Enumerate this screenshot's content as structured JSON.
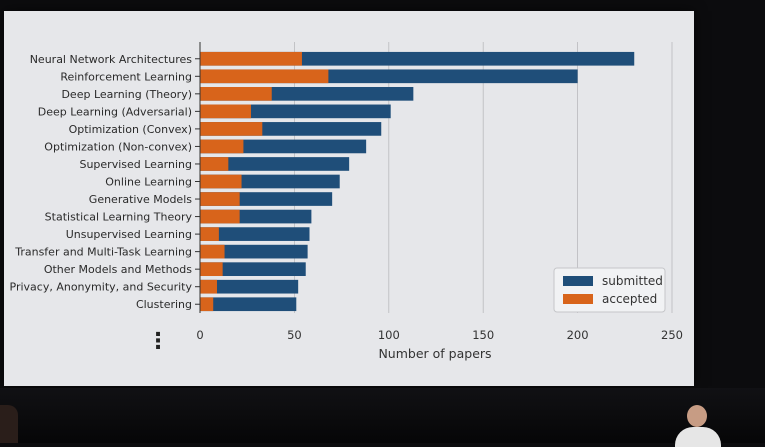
{
  "chart_data": {
    "type": "bar",
    "orientation": "horizontal",
    "stacking": "overlay",
    "categories": [
      "Neural Network Architectures",
      "Reinforcement Learning",
      "Deep Learning (Theory)",
      "Deep Learning (Adversarial)",
      "Optimization (Convex)",
      "Optimization (Non-convex)",
      "Supervised Learning",
      "Online Learning",
      "Generative Models",
      "Statistical Learning Theory",
      "Unsupervised Learning",
      "Transfer and Multi-Task Learning",
      "Other Models and Methods",
      "Privacy, Anonymity, and Security",
      "Clustering"
    ],
    "series": [
      {
        "name": "submitted",
        "color": "#1f4e79",
        "values": [
          230,
          200,
          113,
          101,
          96,
          88,
          79,
          74,
          70,
          59,
          58,
          57,
          56,
          52,
          51
        ]
      },
      {
        "name": "accepted",
        "color": "#d8641b",
        "values": [
          54,
          68,
          38,
          27,
          33,
          23,
          15,
          22,
          21,
          21,
          10,
          13,
          12,
          9,
          7
        ]
      }
    ],
    "xlabel": "Number of papers",
    "ylabel": "",
    "title": "",
    "xlim": [
      0,
      250
    ],
    "xticks": [
      0,
      50,
      100,
      150,
      200,
      250
    ],
    "xtick_labels": [
      "0",
      "50",
      "100",
      "150",
      "200",
      "250"
    ],
    "grid": "vertical",
    "legend_position": "bottom-right",
    "continuation_marker": "⋮"
  }
}
